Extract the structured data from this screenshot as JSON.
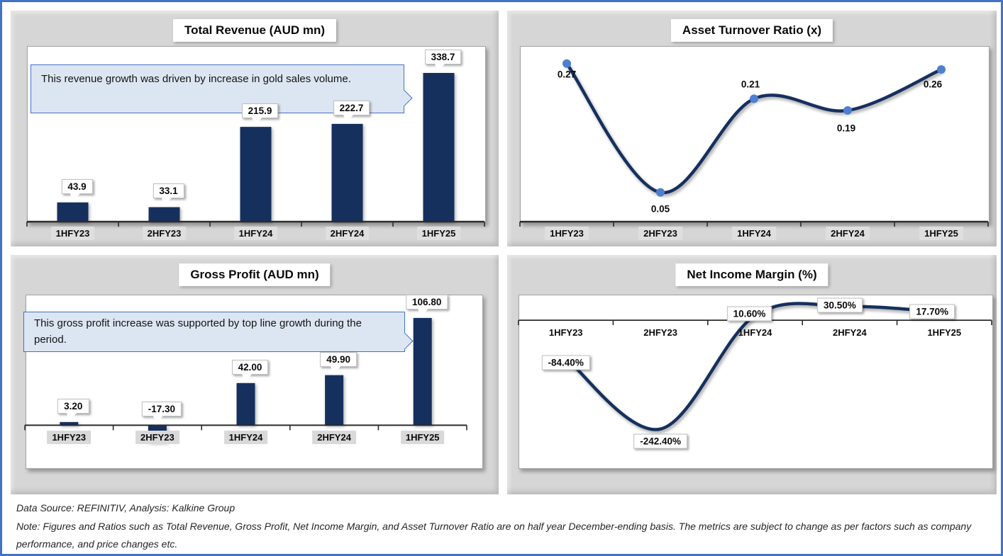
{
  "figure": {
    "frame_border_color": "#4472C4",
    "panel_bg_color": "#D6D6D6",
    "series_navy": "#16305E",
    "marker_blue": "#4E7FD0",
    "callout_bg": "#DCE6F2",
    "callout_border": "#4472C4",
    "axis_color": "#2B2B2B"
  },
  "footer": {
    "source_line": "Data Source: REFINITIV, Analysis: Kalkine Group",
    "note_line": "Note: Figures and Ratios such as Total Revenue, Gross Profit, Net Income Margin, and Asset Turnover Ratio are on half year December-ending basis. The metrics are subject to change as per factors such as company performance, and price changes etc."
  },
  "chart_data": [
    {
      "id": "total-revenue",
      "type": "bar",
      "title": "Total Revenue (AUD mn)",
      "categories": [
        "1HFY23",
        "2HFY23",
        "1HFY24",
        "2HFY24",
        "1HFY25"
      ],
      "values": [
        43.9,
        33.1,
        215.9,
        222.7,
        338.7
      ],
      "value_labels": [
        "43.9",
        "33.1",
        "215.9",
        "222.7",
        "338.7"
      ],
      "ylim": [
        0,
        400
      ],
      "grid": false,
      "legend": "none",
      "annotation": "This revenue growth was driven by increase in gold sales volume."
    },
    {
      "id": "asset-turnover-ratio",
      "type": "line",
      "title": "Asset Turnover Ratio (x)",
      "categories": [
        "1HFY23",
        "2HFY23",
        "1HFY24",
        "2HFY24",
        "1HFY25"
      ],
      "values": [
        0.27,
        0.05,
        0.21,
        0.19,
        0.26
      ],
      "value_labels": [
        "0.27",
        "0.05",
        "0.21",
        "0.19",
        "0.26"
      ],
      "ylim": [
        0,
        0.3
      ],
      "grid": false,
      "legend": "none",
      "markers": true
    },
    {
      "id": "gross-profit",
      "type": "bar",
      "title": "Gross Profit (AUD mn)",
      "categories": [
        "1HFY23",
        "2HFY23",
        "1HFY24",
        "2HFY24",
        "1HFY25"
      ],
      "values": [
        3.2,
        -17.3,
        42.0,
        49.9,
        106.8
      ],
      "value_labels": [
        "3.20",
        "-17.30",
        "42.00",
        "49.90",
        "106.80"
      ],
      "ylim": [
        -42,
        130
      ],
      "grid": false,
      "legend": "none",
      "annotation": "This gross profit increase was supported by top line growth during the period."
    },
    {
      "id": "net-income-margin",
      "type": "line",
      "title": "Net Income Margin (%)",
      "categories": [
        "1HFY23",
        "2HFY23",
        "1HFY24",
        "2HFY24",
        "1HFY25"
      ],
      "values": [
        -84.4,
        -242.4,
        10.6,
        30.5,
        17.7
      ],
      "value_labels": [
        "-84.40%",
        "-242.40%",
        "10.60%",
        "30.50%",
        "17.70%"
      ],
      "ylim": [
        -328,
        57
      ],
      "grid": false,
      "legend": "none",
      "markers": false
    }
  ]
}
